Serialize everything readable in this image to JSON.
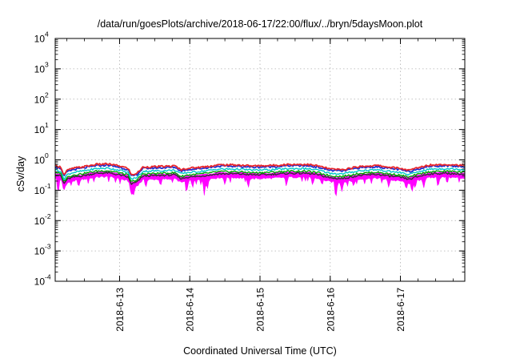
{
  "chart_data": {
    "type": "area",
    "title": "/data/run/goesPlots/archive/2018-06-17/22:00/flux/../bryn/5daysMoon.plot",
    "xlabel": "Coordinated Universal Time (UTC)",
    "ylabel": "cSv/day",
    "yscale": "log",
    "ylim": [
      0.0001,
      10000
    ],
    "y_ticks": [
      {
        "value": 0.0001,
        "label": "10",
        "exp": "-4"
      },
      {
        "value": 0.001,
        "label": "10",
        "exp": "-3"
      },
      {
        "value": 0.01,
        "label": "10",
        "exp": "-2"
      },
      {
        "value": 0.1,
        "label": "10",
        "exp": "-1"
      },
      {
        "value": 1,
        "label": "10",
        "exp": "0"
      },
      {
        "value": 10,
        "label": "10",
        "exp": "1"
      },
      {
        "value": 100,
        "label": "10",
        "exp": "2"
      },
      {
        "value": 1000,
        "label": "10",
        "exp": "3"
      },
      {
        "value": 10000,
        "label": "10",
        "exp": "4"
      }
    ],
    "xlim": [
      "2018-06-12T02:00",
      "2018-06-17T22:00"
    ],
    "x_ticks": [
      {
        "value": "2018-06-13T00:00",
        "label": "2018-6-13"
      },
      {
        "value": "2018-06-14T00:00",
        "label": "2018-6-14"
      },
      {
        "value": "2018-06-15T00:00",
        "label": "2018-6-15"
      },
      {
        "value": "2018-06-16T00:00",
        "label": "2018-6-16"
      },
      {
        "value": "2018-06-17T00:00",
        "label": "2018-6-17"
      }
    ],
    "grid": true,
    "legend": "none",
    "series": [
      {
        "color": "#ff00ff",
        "typical": 0.21,
        "fill_to": 0.3
      },
      {
        "color": "#333333",
        "typical": 0.28
      },
      {
        "color": "#00aa00",
        "typical": 0.33
      },
      {
        "color": "#00c8c8",
        "typical": 0.4
      },
      {
        "color": "#1f2fd0",
        "typical": 0.5
      },
      {
        "color": "#e8262c",
        "typical": 0.55
      }
    ],
    "profile": [
      {
        "x": "2018-06-12T02:00",
        "y": 0.25
      },
      {
        "x": "2018-06-12T04:00",
        "y": 0.22
      },
      {
        "x": "2018-06-12T05:00",
        "y": 0.12
      },
      {
        "x": "2018-06-12T06:00",
        "y": 0.17
      },
      {
        "x": "2018-06-12T08:00",
        "y": 0.2
      },
      {
        "x": "2018-06-12T12:00",
        "y": 0.23
      },
      {
        "x": "2018-06-12T16:00",
        "y": 0.27
      },
      {
        "x": "2018-06-12T20:00",
        "y": 0.28
      },
      {
        "x": "2018-06-13T00:00",
        "y": 0.24
      },
      {
        "x": "2018-06-13T03:00",
        "y": 0.2
      },
      {
        "x": "2018-06-13T04:00",
        "y": 0.12
      },
      {
        "x": "2018-06-13T06:00",
        "y": 0.14
      },
      {
        "x": "2018-06-13T08:00",
        "y": 0.22
      },
      {
        "x": "2018-06-13T14:00",
        "y": 0.23
      },
      {
        "x": "2018-06-13T19:00",
        "y": 0.24
      },
      {
        "x": "2018-06-13T21:00",
        "y": 0.18
      },
      {
        "x": "2018-06-13T23:00",
        "y": 0.2
      },
      {
        "x": "2018-06-14T04:00",
        "y": 0.22
      },
      {
        "x": "2018-06-14T10:00",
        "y": 0.26
      },
      {
        "x": "2018-06-14T16:00",
        "y": 0.26
      },
      {
        "x": "2018-06-14T22:00",
        "y": 0.24
      },
      {
        "x": "2018-06-15T04:00",
        "y": 0.25
      },
      {
        "x": "2018-06-15T10:00",
        "y": 0.27
      },
      {
        "x": "2018-06-15T16:00",
        "y": 0.27
      },
      {
        "x": "2018-06-15T20:00",
        "y": 0.24
      },
      {
        "x": "2018-06-16T00:00",
        "y": 0.19
      },
      {
        "x": "2018-06-16T04:00",
        "y": 0.18
      },
      {
        "x": "2018-06-16T10:00",
        "y": 0.23
      },
      {
        "x": "2018-06-16T16:00",
        "y": 0.25
      },
      {
        "x": "2018-06-16T20:00",
        "y": 0.22
      },
      {
        "x": "2018-06-17T00:00",
        "y": 0.2
      },
      {
        "x": "2018-06-17T03:00",
        "y": 0.17
      },
      {
        "x": "2018-06-17T05:00",
        "y": 0.2
      },
      {
        "x": "2018-06-17T10:00",
        "y": 0.26
      },
      {
        "x": "2018-06-17T16:00",
        "y": 0.27
      },
      {
        "x": "2018-06-17T22:00",
        "y": 0.25
      }
    ],
    "dips": [
      {
        "x": "2018-06-12T03:00",
        "y": 0.07
      },
      {
        "x": "2018-06-12T05:00",
        "y": 0.1
      },
      {
        "x": "2018-06-12T10:00",
        "y": 0.12
      },
      {
        "x": "2018-06-13T04:00",
        "y": 0.07
      },
      {
        "x": "2018-06-13T05:00",
        "y": 0.09
      },
      {
        "x": "2018-06-13T09:00",
        "y": 0.12
      },
      {
        "x": "2018-06-13T14:00",
        "y": 0.13
      },
      {
        "x": "2018-06-13T23:00",
        "y": 0.09
      },
      {
        "x": "2018-06-14T01:00",
        "y": 0.12
      },
      {
        "x": "2018-06-14T05:00",
        "y": 0.06
      },
      {
        "x": "2018-06-14T06:00",
        "y": 0.1
      },
      {
        "x": "2018-06-14T12:00",
        "y": 0.15
      },
      {
        "x": "2018-06-14T20:00",
        "y": 0.11
      },
      {
        "x": "2018-06-15T09:00",
        "y": 0.13
      },
      {
        "x": "2018-06-15T18:00",
        "y": 0.14
      },
      {
        "x": "2018-06-16T02:00",
        "y": 0.06
      },
      {
        "x": "2018-06-16T04:00",
        "y": 0.09
      },
      {
        "x": "2018-06-16T08:00",
        "y": 0.13
      },
      {
        "x": "2018-06-16T20:00",
        "y": 0.12
      },
      {
        "x": "2018-06-17T02:00",
        "y": 0.1
      },
      {
        "x": "2018-06-17T04:00",
        "y": 0.08
      },
      {
        "x": "2018-06-17T05:00",
        "y": 0.11
      },
      {
        "x": "2018-06-17T08:00",
        "y": 0.12
      },
      {
        "x": "2018-06-17T13:00",
        "y": 0.15
      }
    ]
  }
}
